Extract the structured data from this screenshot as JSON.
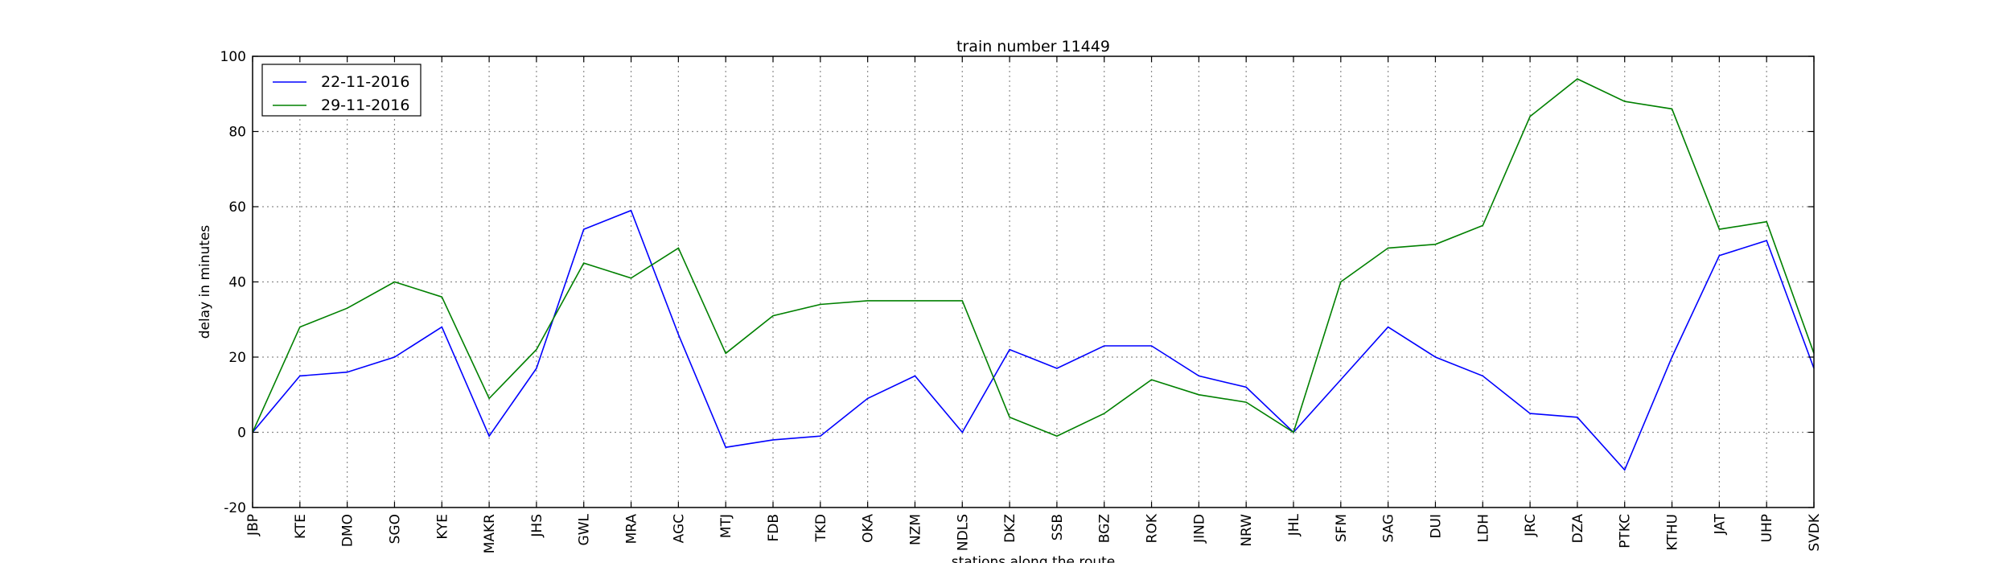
{
  "chart_data": {
    "type": "line",
    "title": "train number 11449",
    "xlabel": "stations along the route",
    "ylabel": "delay in minutes",
    "ylim": [
      -20,
      100
    ],
    "yticks": [
      -20,
      0,
      20,
      40,
      60,
      80,
      100
    ],
    "grid": true,
    "legend_position": "top-left",
    "categories": [
      "JBP",
      "KTE",
      "DMO",
      "SGO",
      "KYE",
      "MAKR",
      "JHS",
      "GWL",
      "MRA",
      "AGC",
      "MTJ",
      "FDB",
      "TKD",
      "OKA",
      "NZM",
      "NDLS",
      "DKZ",
      "SSB",
      "BGZ",
      "ROK",
      "JIND",
      "NRW",
      "JHL",
      "SFM",
      "SAG",
      "DUI",
      "LDH",
      "JRC",
      "DZA",
      "PTKC",
      "KTHU",
      "JAT",
      "UHP",
      "SVDK"
    ],
    "series": [
      {
        "name": "22-11-2016",
        "color": "#0000ff",
        "values": [
          0,
          15,
          16,
          20,
          28,
          -1,
          17,
          54,
          59,
          26,
          -4,
          -2,
          -1,
          9,
          15,
          0,
          22,
          17,
          23,
          23,
          15,
          12,
          0,
          14,
          28,
          20,
          15,
          5,
          4,
          -10,
          20,
          47,
          51,
          17
        ]
      },
      {
        "name": "29-11-2016",
        "color": "#008000",
        "values": [
          0,
          28,
          33,
          40,
          36,
          9,
          22,
          45,
          41,
          49,
          21,
          31,
          34,
          35,
          35,
          35,
          4,
          -1,
          5,
          14,
          10,
          8,
          0,
          40,
          49,
          50,
          55,
          84,
          94,
          88,
          86,
          54,
          56,
          21
        ]
      }
    ]
  }
}
